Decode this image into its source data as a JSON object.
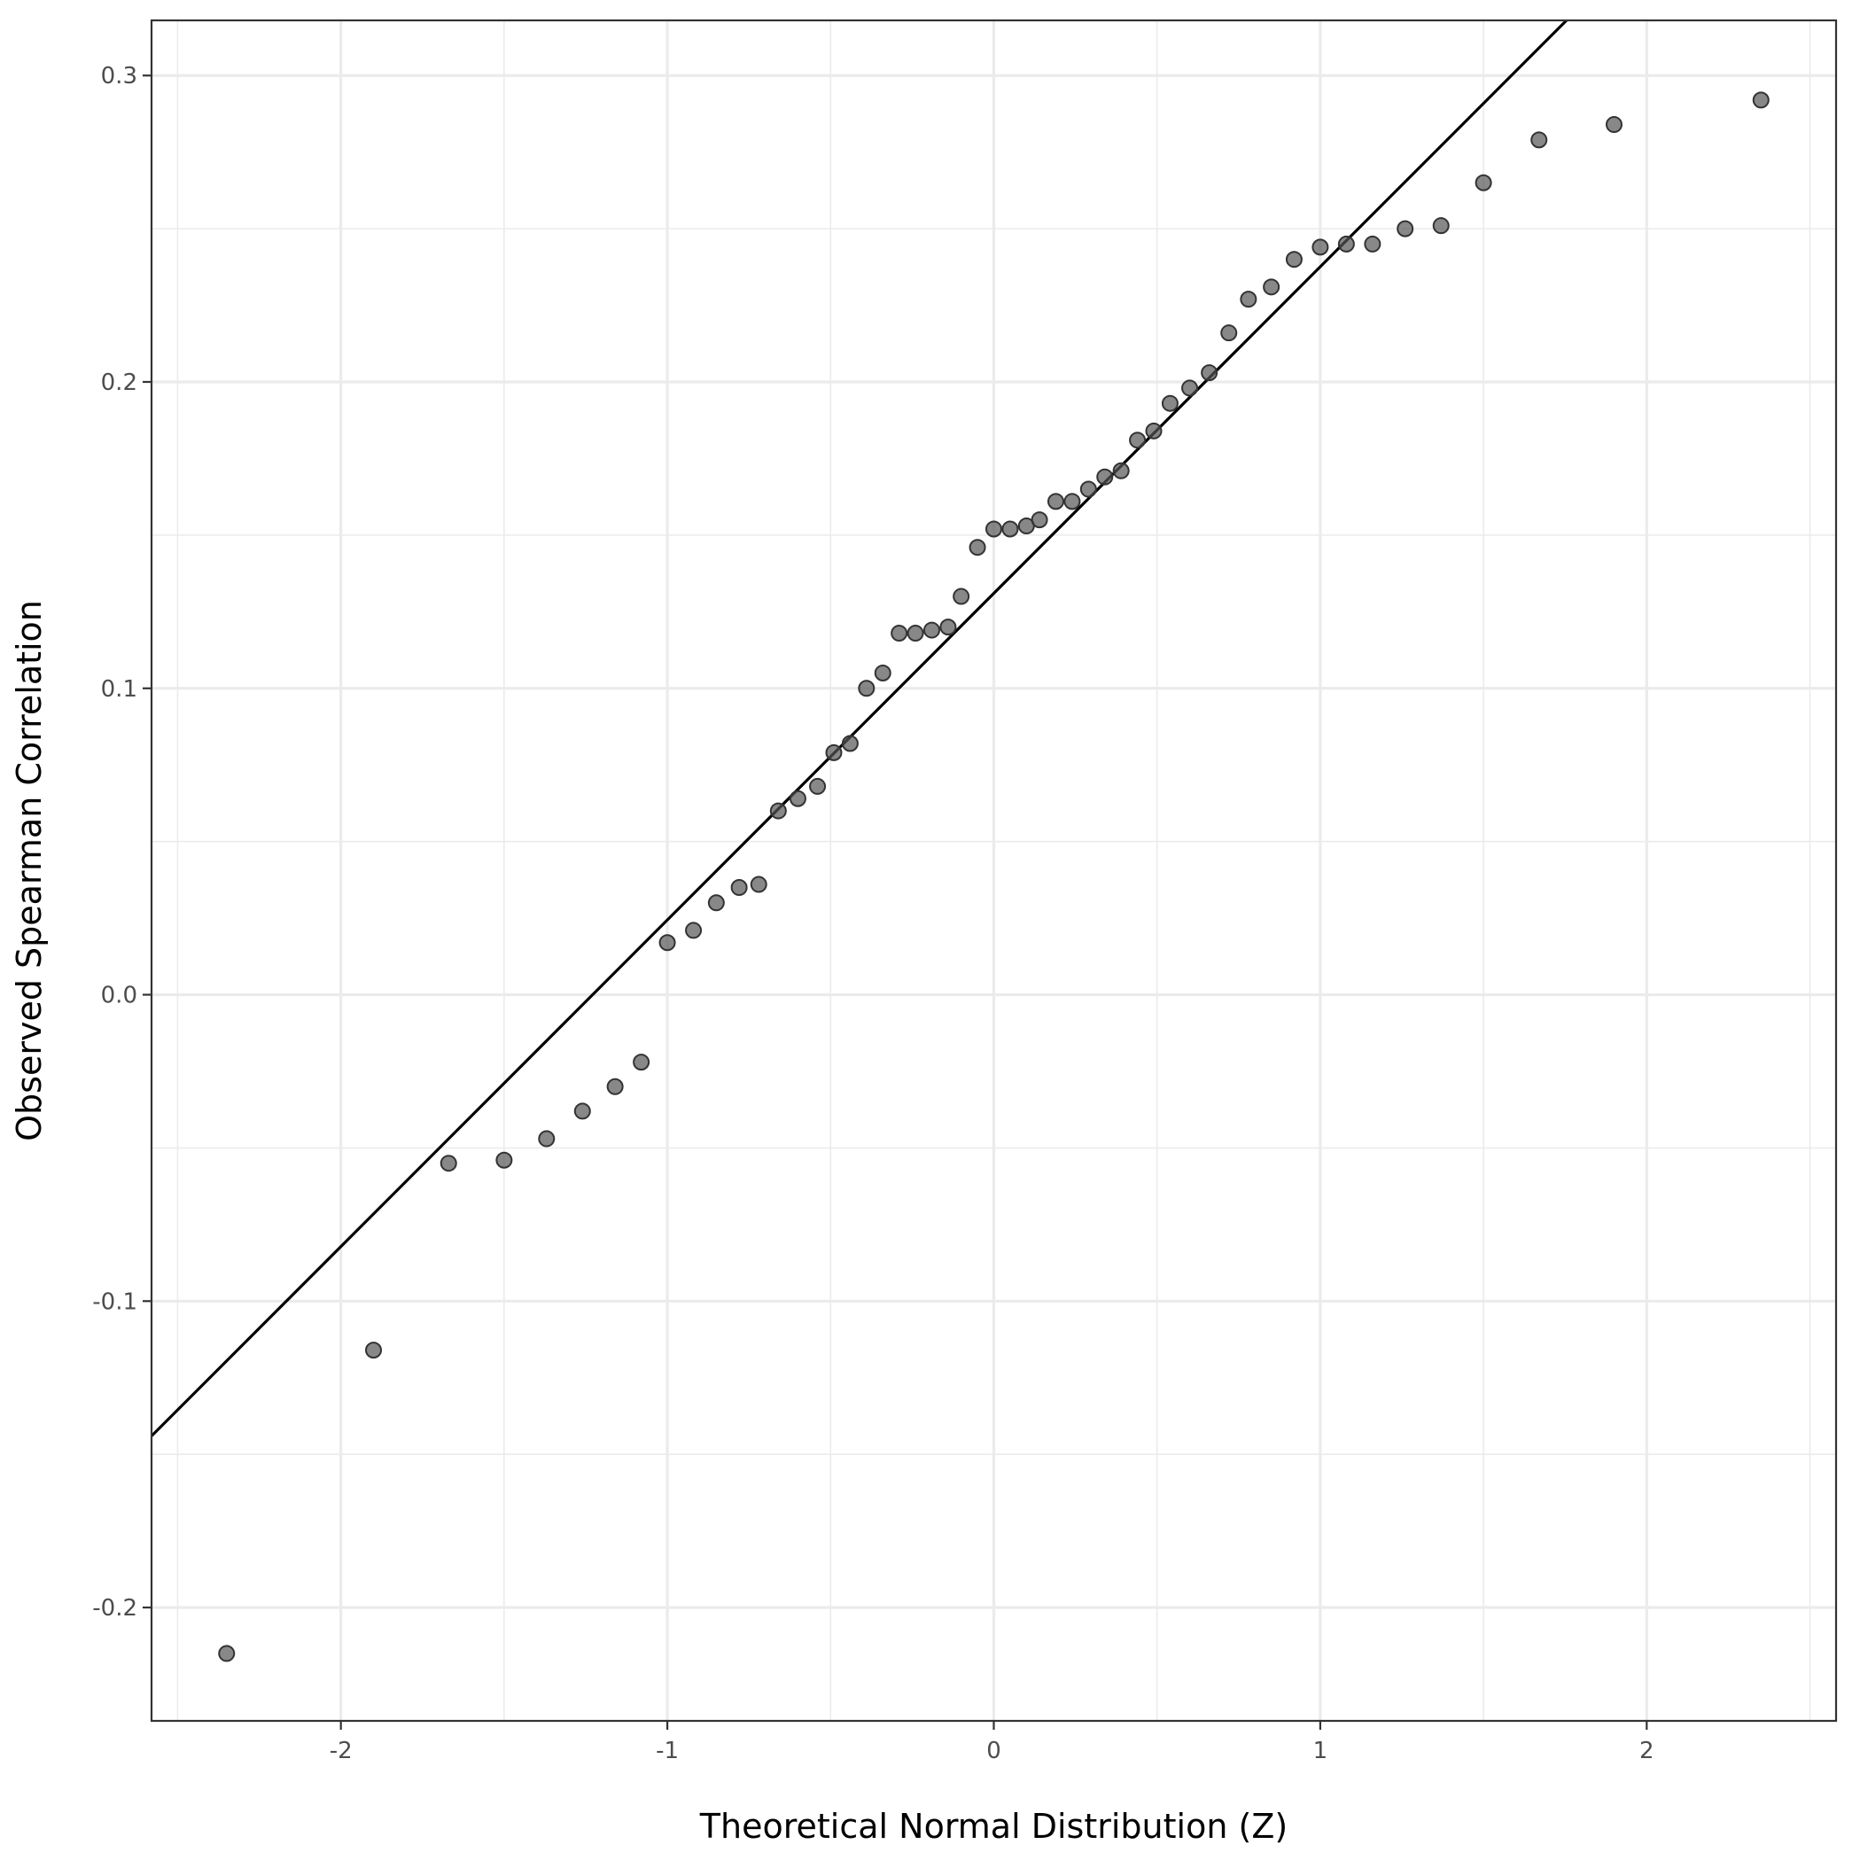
{
  "chart_data": {
    "type": "scatter",
    "title": "",
    "xlabel": "Theoretical Normal Distribution (Z)",
    "ylabel": "Observed Spearman Correlation",
    "xlim": [
      -2.58,
      2.58
    ],
    "ylim": [
      -0.237,
      0.318
    ],
    "x_ticks": [
      -2,
      -1,
      0,
      1,
      2
    ],
    "x_tick_labels": [
      "-2",
      "-1",
      "0",
      "1",
      "2"
    ],
    "y_ticks": [
      -0.2,
      -0.1,
      0.0,
      0.1,
      0.2,
      0.3
    ],
    "y_tick_labels": [
      "-0.2",
      "-0.1",
      "0.0",
      "0.1",
      "0.2",
      "0.3"
    ],
    "grid": true,
    "legend": "none",
    "point_color": "#555555",
    "reference_line": {
      "intercept": 0.131,
      "slope": 0.1066
    },
    "points": [
      {
        "x": -2.35,
        "y": -0.215
      },
      {
        "x": -1.9,
        "y": -0.116
      },
      {
        "x": -1.67,
        "y": -0.055
      },
      {
        "x": -1.5,
        "y": -0.054
      },
      {
        "x": -1.37,
        "y": -0.047
      },
      {
        "x": -1.26,
        "y": -0.038
      },
      {
        "x": -1.16,
        "y": -0.03
      },
      {
        "x": -1.08,
        "y": -0.022
      },
      {
        "x": -1.0,
        "y": 0.017
      },
      {
        "x": -0.92,
        "y": 0.021
      },
      {
        "x": -0.85,
        "y": 0.03
      },
      {
        "x": -0.78,
        "y": 0.035
      },
      {
        "x": -0.72,
        "y": 0.036
      },
      {
        "x": -0.66,
        "y": 0.06
      },
      {
        "x": -0.6,
        "y": 0.064
      },
      {
        "x": -0.54,
        "y": 0.068
      },
      {
        "x": -0.49,
        "y": 0.079
      },
      {
        "x": -0.44,
        "y": 0.082
      },
      {
        "x": -0.39,
        "y": 0.1
      },
      {
        "x": -0.34,
        "y": 0.105
      },
      {
        "x": -0.29,
        "y": 0.118
      },
      {
        "x": -0.24,
        "y": 0.118
      },
      {
        "x": -0.19,
        "y": 0.119
      },
      {
        "x": -0.14,
        "y": 0.12
      },
      {
        "x": -0.1,
        "y": 0.13
      },
      {
        "x": -0.05,
        "y": 0.146
      },
      {
        "x": 0.0,
        "y": 0.152
      },
      {
        "x": 0.05,
        "y": 0.152
      },
      {
        "x": 0.1,
        "y": 0.153
      },
      {
        "x": 0.14,
        "y": 0.155
      },
      {
        "x": 0.19,
        "y": 0.161
      },
      {
        "x": 0.24,
        "y": 0.161
      },
      {
        "x": 0.29,
        "y": 0.165
      },
      {
        "x": 0.34,
        "y": 0.169
      },
      {
        "x": 0.39,
        "y": 0.171
      },
      {
        "x": 0.44,
        "y": 0.181
      },
      {
        "x": 0.49,
        "y": 0.184
      },
      {
        "x": 0.54,
        "y": 0.193
      },
      {
        "x": 0.6,
        "y": 0.198
      },
      {
        "x": 0.66,
        "y": 0.203
      },
      {
        "x": 0.72,
        "y": 0.216
      },
      {
        "x": 0.78,
        "y": 0.227
      },
      {
        "x": 0.85,
        "y": 0.231
      },
      {
        "x": 0.92,
        "y": 0.24
      },
      {
        "x": 1.0,
        "y": 0.244
      },
      {
        "x": 1.08,
        "y": 0.245
      },
      {
        "x": 1.16,
        "y": 0.245
      },
      {
        "x": 1.26,
        "y": 0.25
      },
      {
        "x": 1.37,
        "y": 0.251
      },
      {
        "x": 1.5,
        "y": 0.265
      },
      {
        "x": 1.67,
        "y": 0.279
      },
      {
        "x": 1.9,
        "y": 0.284
      },
      {
        "x": 2.35,
        "y": 0.292
      }
    ]
  }
}
